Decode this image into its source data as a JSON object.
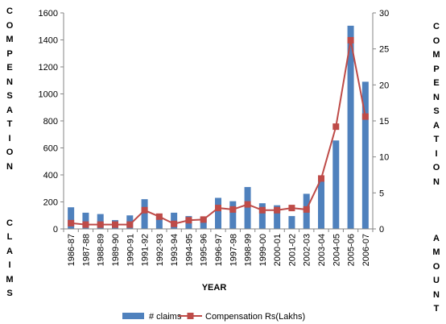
{
  "chart_data": {
    "type": "bar",
    "categories": [
      "1986-87",
      "1987-88",
      "1988-89",
      "1989-90",
      "1990-91",
      "1991-92",
      "1992-93",
      "1993-94",
      "1994-95",
      "1995-96",
      "1996-97",
      "1997-98",
      "1998-99",
      "1999-00",
      "2000-01",
      "2001-02",
      "2002-03",
      "2003-04",
      "2004-05",
      "2005-06",
      "2006-07"
    ],
    "series": [
      {
        "name": "# claims",
        "type": "bar",
        "axis": "left",
        "values": [
          160,
          120,
          110,
          65,
          100,
          220,
          90,
          120,
          95,
          90,
          230,
          205,
          310,
          190,
          175,
          95,
          260,
          385,
          655,
          1505,
          1090
        ]
      },
      {
        "name": "Compensation Rs(Lakhs)",
        "type": "line",
        "axis": "right",
        "values": [
          0.8,
          0.6,
          0.6,
          0.6,
          0.6,
          2.6,
          1.7,
          0.7,
          1.2,
          1.3,
          2.9,
          2.7,
          3.4,
          2.6,
          2.6,
          2.9,
          2.7,
          7.0,
          14.2,
          26.2,
          15.6
        ]
      }
    ],
    "xlabel": "YEAR",
    "ylabel": "COMPENSATION   CLAIMS",
    "ylabel_right": "COMPENSATION   AMOUNT",
    "ylim": [
      0,
      1600
    ],
    "yticks": [
      "0",
      "200",
      "400",
      "600",
      "800",
      "1000",
      "1200",
      "1400",
      "1600"
    ],
    "ylim_right": [
      0,
      30
    ],
    "yticks_right": [
      "0",
      "5",
      "10",
      "15",
      "20",
      "25",
      "30"
    ],
    "grid": false,
    "legend": "bottom",
    "colors": {
      "bar": "#4f81bd",
      "line": "#be4b48"
    }
  }
}
